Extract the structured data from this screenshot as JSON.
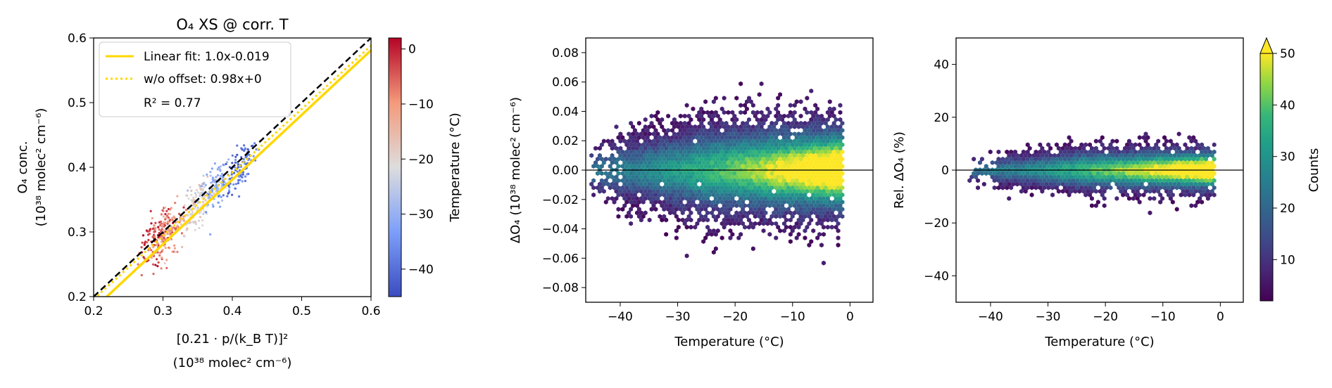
{
  "chart_data": [
    {
      "type": "scatter",
      "title": "O₄ XS @ corr. T",
      "xlabel_line1": "[0.21 · p/(k_B T)]²",
      "xlabel_line2": "(10³⁸ molec² cm⁻⁶)",
      "ylabel_line1": "O₄ conc.",
      "ylabel_line2": "(10³⁸ molec² cm⁻⁶)",
      "xlim": [
        0.2,
        0.6
      ],
      "ylim": [
        0.2,
        0.6
      ],
      "xticks": [
        "0.2",
        "0.3",
        "0.4",
        "0.5",
        "0.6"
      ],
      "yticks": [
        "0.2",
        "0.3",
        "0.4",
        "0.5",
        "0.6"
      ],
      "legend_position": "top-left",
      "legend": [
        {
          "label": "Linear fit:   1.0x-0.019",
          "style": "solid",
          "color": "#ffd700"
        },
        {
          "label": "w/o offset: 0.98x+0",
          "style": "dotted",
          "color": "#ffd700"
        }
      ],
      "r_squared_text": "R² = 0.77",
      "lines": [
        {
          "name": "Linear fit",
          "slope": 1.0,
          "intercept": -0.019
        },
        {
          "name": "w/o offset",
          "slope": 0.98,
          "intercept": 0
        },
        {
          "name": "1:1",
          "slope": 1.0,
          "intercept": 0,
          "color": "#000000",
          "style": "dashed"
        }
      ],
      "point_cloud": [
        {
          "temp": -2,
          "x": 0.29,
          "y": 0.29,
          "sx": 0.012,
          "sy": 0.028
        },
        {
          "temp": -10,
          "x": 0.31,
          "y": 0.3,
          "sx": 0.012,
          "sy": 0.028
        },
        {
          "temp": -20,
          "x": 0.345,
          "y": 0.34,
          "sx": 0.012,
          "sy": 0.026
        },
        {
          "temp": -30,
          "x": 0.375,
          "y": 0.37,
          "sx": 0.012,
          "sy": 0.024
        },
        {
          "temp": -40,
          "x": 0.41,
          "y": 0.4,
          "sx": 0.012,
          "sy": 0.022
        }
      ],
      "colorbar": {
        "label": "Temperature (°C)",
        "range": [
          -45,
          2
        ],
        "ticks": [
          "0",
          "−10",
          "−20",
          "−30",
          "−40"
        ],
        "colormap": "coolwarm"
      }
    },
    {
      "type": "heatmap",
      "xlabel": "Temperature (°C)",
      "ylabel": "ΔO₄ (10³⁸ molec² cm⁻⁶)",
      "xlim": [
        -46,
        4
      ],
      "ylim": [
        -0.09,
        0.09
      ],
      "xticks": [
        "−40",
        "−30",
        "−20",
        "−10",
        "0"
      ],
      "yticks": [
        "0.08",
        "0.06",
        "0.04",
        "0.02",
        "0.00",
        "−0.02",
        "−0.04",
        "−0.06",
        "−0.08"
      ],
      "reference_line_y": 0,
      "x_range_of_data": [
        -45,
        -1
      ],
      "spread_half_width": 0.035
    },
    {
      "type": "heatmap",
      "xlabel": "Temperature (°C)",
      "ylabel": "Rel. ΔO₄ (%)",
      "xlim": [
        -46,
        4
      ],
      "ylim": [
        -50,
        50
      ],
      "xticks": [
        "−40",
        "−30",
        "−20",
        "−10",
        "0"
      ],
      "yticks": [
        "40",
        "20",
        "0",
        "−20",
        "−40"
      ],
      "reference_line_y": 0,
      "x_range_of_data": [
        -44,
        -1
      ],
      "spread_half_width": 9,
      "colorbar": {
        "label": "Counts",
        "range": [
          2,
          50
        ],
        "ticks": [
          "50",
          "40",
          "30",
          "20",
          "10"
        ],
        "colormap": "viridis",
        "extend": "max"
      }
    }
  ]
}
